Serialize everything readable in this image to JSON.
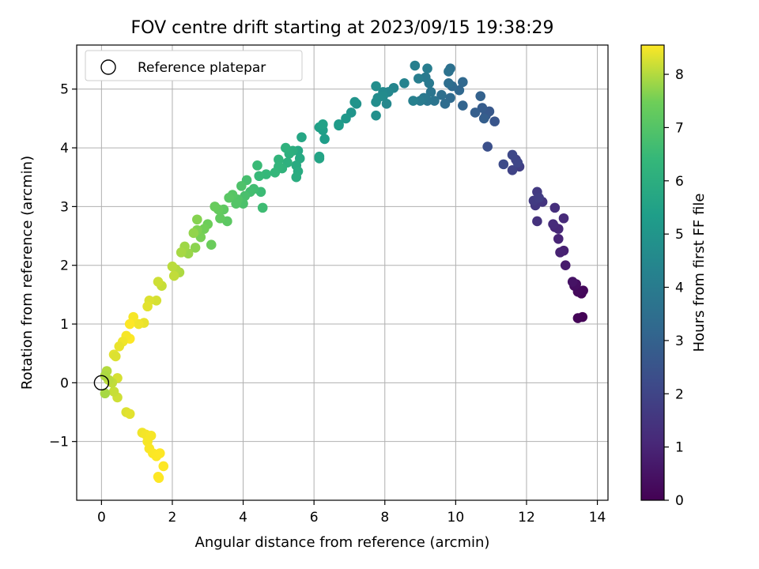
{
  "chart_data": {
    "type": "scatter",
    "title": "FOV centre drift starting at 2023/09/15 19:38:29",
    "xlabel": "Angular distance from reference (arcmin)",
    "ylabel": "Rotation from reference (arcmin)",
    "xlim": [
      -0.7,
      14.3
    ],
    "ylim": [
      -2.0,
      5.75
    ],
    "xticks": [
      0,
      2,
      4,
      6,
      8,
      10,
      12,
      14
    ],
    "yticks": [
      -1,
      0,
      1,
      2,
      3,
      4,
      5
    ],
    "grid": true,
    "legend": {
      "placement": "top-left",
      "entries": [
        "Reference platepar"
      ]
    },
    "reference_point": {
      "x": 0,
      "y": 0
    },
    "colorbar": {
      "label": "Hours from first FF file",
      "range": [
        0,
        8.55
      ],
      "ticks": [
        0,
        1,
        2,
        3,
        4,
        5,
        6,
        7,
        8
      ],
      "colormap": "viridis"
    },
    "points": [
      [
        13.58,
        1.12,
        0.05
      ],
      [
        13.45,
        1.1,
        0.1
      ],
      [
        13.55,
        1.52,
        0.15
      ],
      [
        13.6,
        1.57,
        0.2
      ],
      [
        13.45,
        1.55,
        0.25
      ],
      [
        13.35,
        1.65,
        0.3
      ],
      [
        13.4,
        1.68,
        0.35
      ],
      [
        13.3,
        1.72,
        0.5
      ],
      [
        13.1,
        2.0,
        0.7
      ],
      [
        13.05,
        2.25,
        0.85
      ],
      [
        12.95,
        2.22,
        0.9
      ],
      [
        12.9,
        2.45,
        1.0
      ],
      [
        12.8,
        2.65,
        1.05
      ],
      [
        12.9,
        2.62,
        1.1
      ],
      [
        13.05,
        2.8,
        1.15
      ],
      [
        12.75,
        2.7,
        1.2
      ],
      [
        12.8,
        2.98,
        1.3
      ],
      [
        12.3,
        2.75,
        1.4
      ],
      [
        12.45,
        3.08,
        1.5
      ],
      [
        12.25,
        3.02,
        1.55
      ],
      [
        12.3,
        3.25,
        1.65
      ],
      [
        12.2,
        3.1,
        1.7
      ],
      [
        12.35,
        3.15,
        1.75
      ],
      [
        11.8,
        3.68,
        1.8
      ],
      [
        11.7,
        3.8,
        1.9
      ],
      [
        11.6,
        3.62,
        1.95
      ],
      [
        11.75,
        3.75,
        2.05
      ],
      [
        11.6,
        3.88,
        2.1
      ],
      [
        11.35,
        3.72,
        2.2
      ],
      [
        10.9,
        4.02,
        2.35
      ],
      [
        11.1,
        4.45,
        2.55
      ],
      [
        10.95,
        4.62,
        2.65
      ],
      [
        10.85,
        4.55,
        2.7
      ],
      [
        10.75,
        4.68,
        2.8
      ],
      [
        10.8,
        4.5,
        2.85
      ],
      [
        10.55,
        4.6,
        2.9
      ],
      [
        10.7,
        4.88,
        3.0
      ],
      [
        10.2,
        4.72,
        3.1
      ],
      [
        10.1,
        4.98,
        3.2
      ],
      [
        10.2,
        5.12,
        3.25
      ],
      [
        9.9,
        5.05,
        3.3
      ],
      [
        9.85,
        4.85,
        3.35
      ],
      [
        9.7,
        4.75,
        3.4
      ],
      [
        9.8,
        5.1,
        3.45
      ],
      [
        9.6,
        4.9,
        3.5
      ],
      [
        9.85,
        5.35,
        3.55
      ],
      [
        9.8,
        5.3,
        3.6
      ],
      [
        9.4,
        4.8,
        3.7
      ],
      [
        9.3,
        4.95,
        3.75
      ],
      [
        9.2,
        4.8,
        3.8
      ],
      [
        9.1,
        4.85,
        3.85
      ],
      [
        9.25,
        5.1,
        3.9
      ],
      [
        9.15,
        5.2,
        3.95
      ],
      [
        9.0,
        4.8,
        4.0
      ],
      [
        9.2,
        5.35,
        4.05
      ],
      [
        8.95,
        5.18,
        4.1
      ],
      [
        8.85,
        5.4,
        4.15
      ],
      [
        8.8,
        4.8,
        4.2
      ],
      [
        8.55,
        5.1,
        4.3
      ],
      [
        8.25,
        5.02,
        4.4
      ],
      [
        8.1,
        4.95,
        4.45
      ],
      [
        8.05,
        4.75,
        4.5
      ],
      [
        7.95,
        4.95,
        4.55
      ],
      [
        7.95,
        4.88,
        4.6
      ],
      [
        7.8,
        4.85,
        4.65
      ],
      [
        7.75,
        4.78,
        4.7
      ],
      [
        7.75,
        5.05,
        4.75
      ],
      [
        7.75,
        4.55,
        4.8
      ],
      [
        7.2,
        4.75,
        4.9
      ],
      [
        7.15,
        4.78,
        4.95
      ],
      [
        7.05,
        4.6,
        5.0
      ],
      [
        6.9,
        4.5,
        5.1
      ],
      [
        6.7,
        4.4,
        5.2
      ],
      [
        6.7,
        4.38,
        5.25
      ],
      [
        6.3,
        4.15,
        5.35
      ],
      [
        6.25,
        4.3,
        5.4
      ],
      [
        6.15,
        4.35,
        5.45
      ],
      [
        6.25,
        4.4,
        5.5
      ],
      [
        6.15,
        3.85,
        5.55
      ],
      [
        6.15,
        3.82,
        5.6
      ],
      [
        5.65,
        4.18,
        5.7
      ],
      [
        5.55,
        3.95,
        5.75
      ],
      [
        5.6,
        3.82,
        5.8
      ],
      [
        5.5,
        3.7,
        5.85
      ],
      [
        5.55,
        3.6,
        5.9
      ],
      [
        5.5,
        3.5,
        5.95
      ],
      [
        5.4,
        3.95,
        6.0
      ],
      [
        5.3,
        3.9,
        6.05
      ],
      [
        5.25,
        3.75,
        6.1
      ],
      [
        5.2,
        4.0,
        6.15
      ],
      [
        5.1,
        3.65,
        6.2
      ],
      [
        5.0,
        3.8,
        6.25
      ],
      [
        5.0,
        3.68,
        6.3
      ],
      [
        4.9,
        3.58,
        6.35
      ],
      [
        4.65,
        3.55,
        6.4
      ],
      [
        4.45,
        3.52,
        6.45
      ],
      [
        4.4,
        3.7,
        6.5
      ],
      [
        4.5,
        3.25,
        6.55
      ],
      [
        4.55,
        2.98,
        6.6
      ],
      [
        4.3,
        3.3,
        6.65
      ],
      [
        4.2,
        3.25,
        6.7
      ],
      [
        4.1,
        3.45,
        6.75
      ],
      [
        4.05,
        3.18,
        6.8
      ],
      [
        4.0,
        3.05,
        6.85
      ],
      [
        3.95,
        3.35,
        6.9
      ],
      [
        3.85,
        3.12,
        6.95
      ],
      [
        3.8,
        3.05,
        7.0
      ],
      [
        3.7,
        3.2,
        7.05
      ],
      [
        3.6,
        3.15,
        7.1
      ],
      [
        3.55,
        2.75,
        7.15
      ],
      [
        3.45,
        2.95,
        7.2
      ],
      [
        3.35,
        2.8,
        7.25
      ],
      [
        3.3,
        2.95,
        7.3
      ],
      [
        3.2,
        3.0,
        7.35
      ],
      [
        3.1,
        2.35,
        7.4
      ],
      [
        3.0,
        2.7,
        7.45
      ],
      [
        2.9,
        2.62,
        7.5
      ],
      [
        2.8,
        2.48,
        7.55
      ],
      [
        2.7,
        2.6,
        7.6
      ],
      [
        2.7,
        2.78,
        7.65
      ],
      [
        2.65,
        2.3,
        7.7
      ],
      [
        2.6,
        2.55,
        7.75
      ],
      [
        2.45,
        2.2,
        7.8
      ],
      [
        2.35,
        2.32,
        7.85
      ],
      [
        2.25,
        2.22,
        7.9
      ],
      [
        2.2,
        1.88,
        7.95
      ],
      [
        2.1,
        1.93,
        8.0
      ],
      [
        2.0,
        1.98,
        8.05
      ],
      [
        2.05,
        1.82,
        8.1
      ],
      [
        1.7,
        1.65,
        8.15
      ],
      [
        1.6,
        1.72,
        8.2
      ],
      [
        1.55,
        1.4,
        8.25
      ],
      [
        1.35,
        1.4,
        8.3
      ],
      [
        1.3,
        1.3,
        8.35
      ],
      [
        1.2,
        1.02,
        8.4
      ],
      [
        1.05,
        1.0,
        8.45
      ],
      [
        0.9,
        1.12,
        8.5
      ],
      [
        0.8,
        1.0,
        8.55
      ],
      [
        0.8,
        0.75,
        8.55
      ],
      [
        0.7,
        0.8,
        8.5
      ],
      [
        0.6,
        0.7,
        8.45
      ],
      [
        0.5,
        0.62,
        8.4
      ],
      [
        0.35,
        0.48,
        8.35
      ],
      [
        0.4,
        0.45,
        8.3
      ],
      [
        0.45,
        0.08,
        8.25
      ],
      [
        0.45,
        -0.25,
        8.2
      ],
      [
        0.35,
        -0.15,
        8.15
      ],
      [
        0.3,
        0.0,
        8.1
      ],
      [
        0.2,
        0.05,
        8.05
      ],
      [
        0.15,
        0.2,
        8.0
      ],
      [
        0.1,
        0.12,
        7.95
      ],
      [
        0.1,
        -0.18,
        7.9
      ],
      [
        0.7,
        -0.5,
        8.3
      ],
      [
        0.8,
        -0.53,
        8.35
      ],
      [
        1.15,
        -0.85,
        8.45
      ],
      [
        1.25,
        -0.88,
        8.48
      ],
      [
        1.4,
        -0.9,
        8.5
      ],
      [
        1.3,
        -1.0,
        8.5
      ],
      [
        1.35,
        -1.12,
        8.52
      ],
      [
        1.45,
        -1.2,
        8.53
      ],
      [
        1.55,
        -1.25,
        8.54
      ],
      [
        1.65,
        -1.2,
        8.55
      ],
      [
        1.75,
        -1.42,
        8.55
      ],
      [
        1.6,
        -1.6,
        8.55
      ],
      [
        1.62,
        -1.62,
        8.55
      ]
    ]
  }
}
